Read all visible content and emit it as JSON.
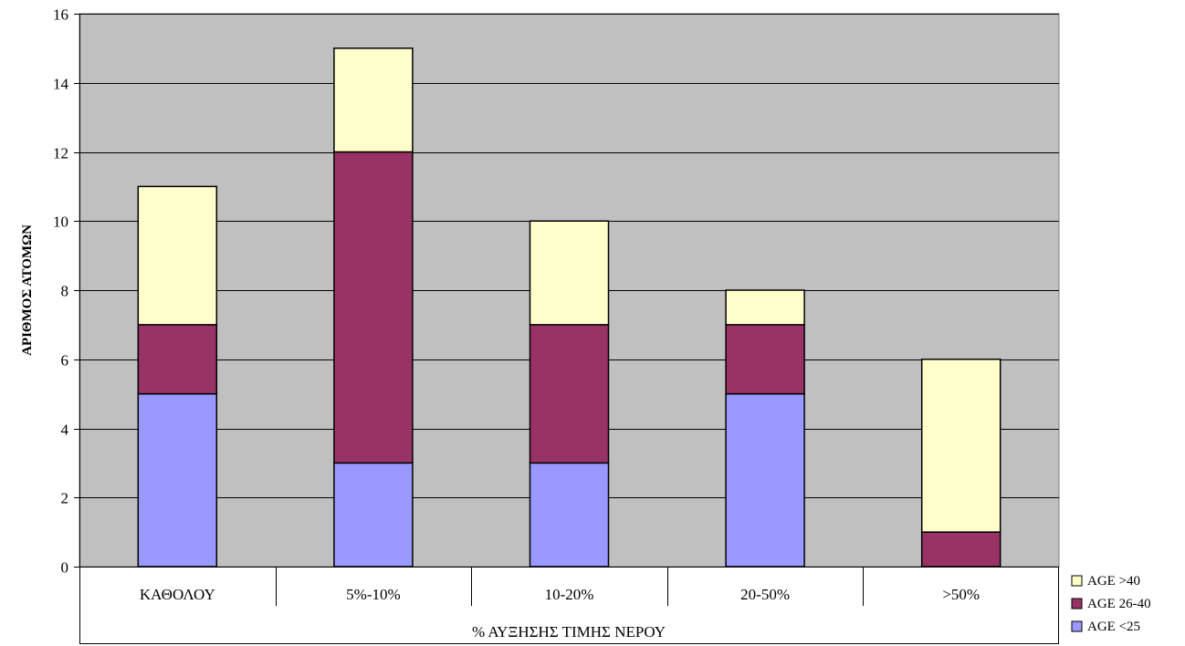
{
  "chart_data": {
    "type": "bar",
    "stacked": true,
    "categories": [
      "ΚΑΘΟΛΟΥ",
      "5%-10%",
      "10-20%",
      "20-50%",
      ">50%"
    ],
    "series": [
      {
        "name": "AGE <25",
        "values": [
          5,
          3,
          3,
          5,
          0
        ],
        "color": "#9999FF"
      },
      {
        "name": "AGE 26-40",
        "values": [
          2,
          9,
          4,
          2,
          1
        ],
        "color": "#993366"
      },
      {
        "name": "AGE >40",
        "values": [
          4,
          3,
          3,
          1,
          5
        ],
        "color": "#FFFFCC"
      }
    ],
    "xlabel": "% ΑΥΞΗΣΗΣ ΤΙΜΗΣ ΝΕΡΟΥ",
    "ylabel": "ΑΡΙΘΜΟΣ ΑΤΟΜΩΝ",
    "ylim": [
      0,
      16
    ],
    "yticks": [
      0,
      2,
      4,
      6,
      8,
      10,
      12,
      14,
      16
    ],
    "grid": true,
    "legend_position": "bottom-right",
    "plot_background": "#C0C0C0"
  }
}
